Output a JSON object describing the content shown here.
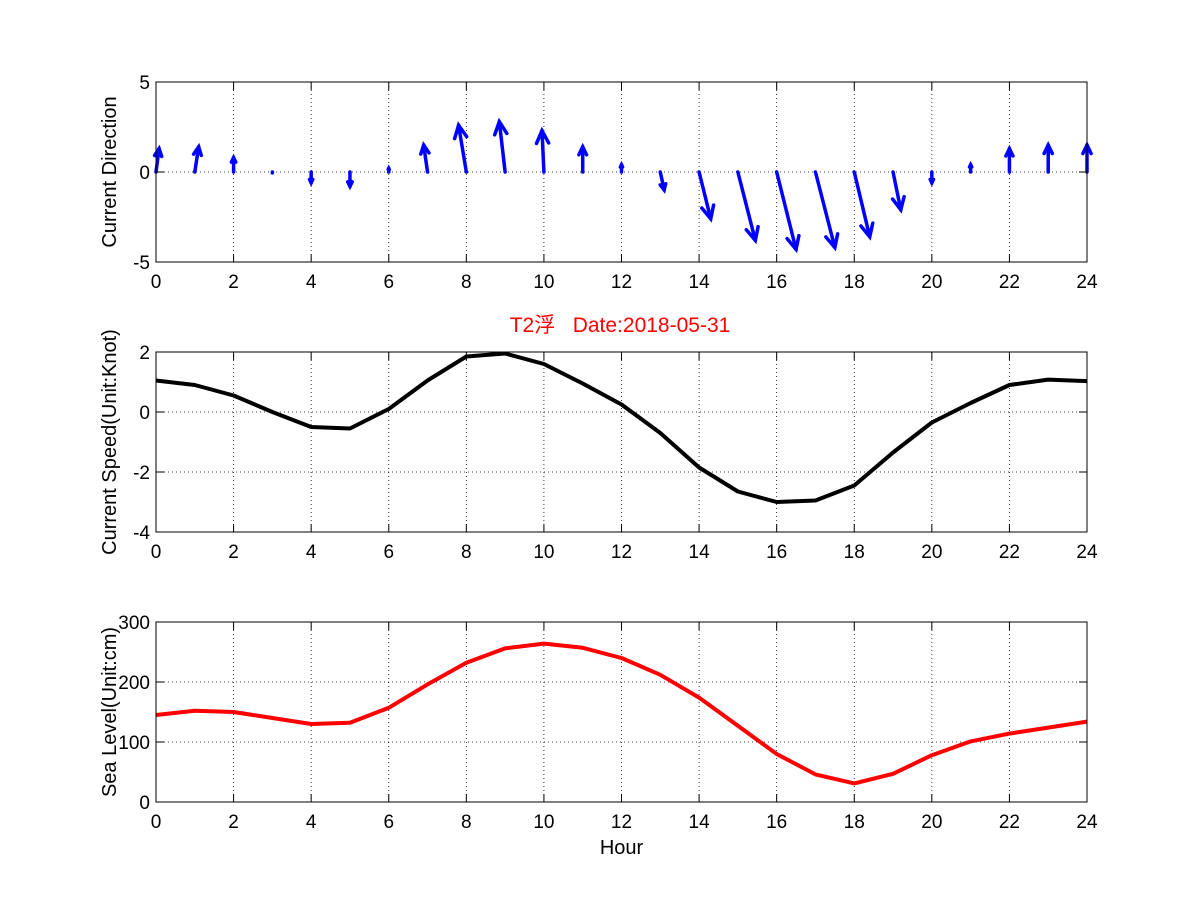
{
  "figure": {
    "title": "T2浮   Date:2018-05-31",
    "title_color": "#ff0000",
    "background": "#ffffff"
  },
  "chart_data": [
    {
      "type": "quiver",
      "id": "direction",
      "ylabel": "Current Direction",
      "xlabel": "",
      "xlim": [
        0,
        24
      ],
      "ylim": [
        -5,
        5
      ],
      "xticks": [
        0,
        2,
        4,
        6,
        8,
        10,
        12,
        14,
        16,
        18,
        20,
        22,
        24
      ],
      "yticks": [
        -5,
        0,
        5
      ],
      "grid": true,
      "color": "#0000ff",
      "vectors": [
        {
          "x": 0,
          "u": 0.08,
          "v": 1.3
        },
        {
          "x": 1,
          "u": 0.1,
          "v": 1.4
        },
        {
          "x": 2,
          "u": 0.0,
          "v": 0.8
        },
        {
          "x": 3,
          "u": 0.0,
          "v": -0.05
        },
        {
          "x": 4,
          "u": 0.0,
          "v": -0.6
        },
        {
          "x": 5,
          "u": 0.0,
          "v": -0.8
        },
        {
          "x": 6,
          "u": 0.0,
          "v": 0.2
        },
        {
          "x": 7,
          "u": -0.1,
          "v": 1.5
        },
        {
          "x": 8,
          "u": -0.2,
          "v": 2.6
        },
        {
          "x": 9,
          "u": -0.15,
          "v": 2.8
        },
        {
          "x": 10,
          "u": -0.05,
          "v": 2.3
        },
        {
          "x": 11,
          "u": 0.0,
          "v": 1.4
        },
        {
          "x": 12,
          "u": 0.0,
          "v": 0.4
        },
        {
          "x": 13,
          "u": 0.1,
          "v": -1.0
        },
        {
          "x": 14,
          "u": 0.3,
          "v": -2.6
        },
        {
          "x": 15,
          "u": 0.45,
          "v": -3.8
        },
        {
          "x": 16,
          "u": 0.5,
          "v": -4.3
        },
        {
          "x": 17,
          "u": 0.5,
          "v": -4.2
        },
        {
          "x": 18,
          "u": 0.4,
          "v": -3.6
        },
        {
          "x": 19,
          "u": 0.2,
          "v": -2.1
        },
        {
          "x": 20,
          "u": 0.0,
          "v": -0.6
        },
        {
          "x": 21,
          "u": 0.0,
          "v": 0.4
        },
        {
          "x": 22,
          "u": 0.0,
          "v": 1.3
        },
        {
          "x": 23,
          "u": 0.0,
          "v": 1.5
        },
        {
          "x": 24,
          "u": 0.0,
          "v": 1.5
        }
      ]
    },
    {
      "type": "line",
      "id": "speed",
      "ylabel": "Current Speed(Unit:Knot)",
      "xlabel": "",
      "xlim": [
        0,
        24
      ],
      "ylim": [
        -4,
        2
      ],
      "xticks": [
        0,
        2,
        4,
        6,
        8,
        10,
        12,
        14,
        16,
        18,
        20,
        22,
        24
      ],
      "yticks": [
        -4,
        -2,
        0,
        2
      ],
      "grid": true,
      "series": [
        {
          "color": "#000000",
          "x": [
            0,
            1,
            2,
            3,
            4,
            5,
            6,
            7,
            8,
            9,
            10,
            11,
            12,
            13,
            14,
            15,
            16,
            17,
            18,
            19,
            20,
            21,
            22,
            23,
            24
          ],
          "y": [
            1.05,
            0.9,
            0.55,
            0.0,
            -0.5,
            -0.55,
            0.1,
            1.05,
            1.85,
            1.95,
            1.6,
            0.95,
            0.25,
            -0.7,
            -1.85,
            -2.65,
            -3.0,
            -2.95,
            -2.45,
            -1.35,
            -0.35,
            0.3,
            0.9,
            1.08,
            1.03
          ]
        }
      ]
    },
    {
      "type": "line",
      "id": "sealevel",
      "ylabel": "Sea Level(Unit:cm)",
      "xlabel": "Hour",
      "xlim": [
        0,
        24
      ],
      "ylim": [
        0,
        300
      ],
      "xticks": [
        0,
        2,
        4,
        6,
        8,
        10,
        12,
        14,
        16,
        18,
        20,
        22,
        24
      ],
      "yticks": [
        0,
        100,
        200,
        300
      ],
      "grid": true,
      "series": [
        {
          "color": "#ff0000",
          "x": [
            0,
            1,
            2,
            3,
            4,
            5,
            6,
            7,
            8,
            9,
            10,
            11,
            12,
            13,
            14,
            15,
            16,
            17,
            18,
            19,
            20,
            21,
            22,
            23,
            24
          ],
          "y": [
            145,
            152,
            150,
            140,
            130,
            132,
            157,
            196,
            232,
            256,
            264,
            257,
            240,
            212,
            174,
            127,
            80,
            46,
            31,
            47,
            78,
            101,
            114,
            124,
            134
          ]
        }
      ]
    }
  ]
}
